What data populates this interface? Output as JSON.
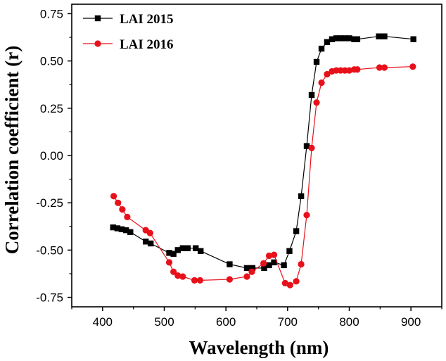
{
  "chart_data": {
    "type": "line",
    "xlabel": "Wavelength (nm)",
    "ylabel": "Correlation coefficient (r)",
    "xlim": [
      350,
      950
    ],
    "ylim": [
      -0.8,
      0.8
    ],
    "xticks": [
      "400",
      "500",
      "600",
      "700",
      "800",
      "900"
    ],
    "yticks": [
      "-0.75",
      "-0.50",
      "-0.25",
      "0.00",
      "0.25",
      "0.50",
      "0.75"
    ],
    "legend_position": "top-left",
    "grid": false,
    "series": [
      {
        "name": "LAI 2015",
        "color": "#000000",
        "marker": "square",
        "x": [
          417,
          424,
          431,
          438,
          445,
          470,
          478,
          508,
          515,
          522,
          530,
          538,
          551,
          559,
          606,
          634,
          643,
          662,
          670,
          678,
          694,
          703,
          714,
          722,
          731,
          739,
          747,
          755,
          764,
          772,
          779,
          786,
          793,
          800,
          808,
          813,
          848,
          857,
          904
        ],
        "y": [
          -0.38,
          -0.385,
          -0.39,
          -0.395,
          -0.405,
          -0.455,
          -0.465,
          -0.515,
          -0.52,
          -0.5,
          -0.49,
          -0.49,
          -0.49,
          -0.505,
          -0.575,
          -0.595,
          -0.595,
          -0.595,
          -0.58,
          -0.565,
          -0.58,
          -0.505,
          -0.4,
          -0.215,
          0.05,
          0.32,
          0.495,
          0.565,
          0.6,
          0.615,
          0.62,
          0.62,
          0.62,
          0.62,
          0.615,
          0.615,
          0.63,
          0.63,
          0.615
        ]
      },
      {
        "name": "LAI 2016",
        "color": "#e8101a",
        "marker": "circle",
        "x": [
          418,
          425,
          432,
          440,
          470,
          477,
          508,
          515,
          522,
          530,
          549,
          558,
          606,
          634,
          642,
          661,
          670,
          678,
          696,
          704,
          714,
          722,
          731,
          739,
          747,
          755,
          764,
          772,
          779,
          786,
          793,
          800,
          808,
          813,
          849,
          857,
          903
        ],
        "y": [
          -0.215,
          -0.25,
          -0.285,
          -0.325,
          -0.395,
          -0.41,
          -0.565,
          -0.615,
          -0.635,
          -0.64,
          -0.66,
          -0.66,
          -0.655,
          -0.64,
          -0.615,
          -0.57,
          -0.53,
          -0.525,
          -0.675,
          -0.685,
          -0.665,
          -0.575,
          -0.315,
          0.04,
          0.28,
          0.385,
          0.43,
          0.445,
          0.45,
          0.45,
          0.45,
          0.45,
          0.455,
          0.455,
          0.465,
          0.465,
          0.47
        ]
      }
    ]
  }
}
